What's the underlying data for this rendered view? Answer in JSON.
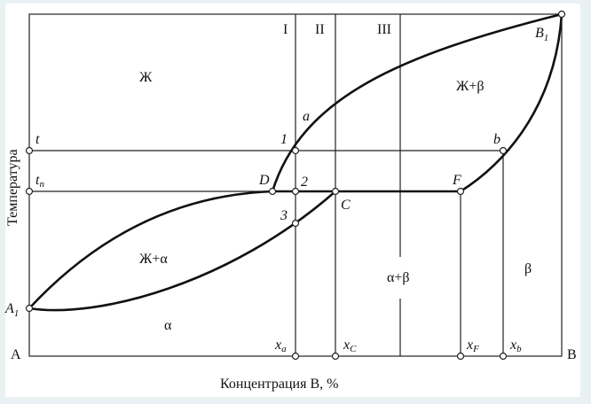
{
  "diagram": {
    "y_axis_label": "Температура",
    "x_axis_label": "Концентрация B, %",
    "corner_left": "A",
    "corner_right": "B",
    "verticals": [
      "I",
      "II",
      "III"
    ],
    "regions": {
      "liquid": "Ж",
      "liquid_beta": "Ж+β",
      "liquid_alpha": "Ж+α",
      "alpha_beta": "α+β",
      "alpha": "α",
      "beta": "β"
    },
    "points": {
      "A1": {
        "main": "A",
        "sub": "1"
      },
      "B1": {
        "main": "B",
        "sub": "1"
      },
      "t": "t",
      "tp": {
        "main": "t",
        "sub": "п"
      },
      "a": "a",
      "b": "b",
      "p1": "1",
      "p2": "2",
      "p3": "3",
      "D": "D",
      "C": "C",
      "F": "F"
    },
    "x_marks": [
      {
        "main": "x",
        "sub": "a"
      },
      {
        "main": "x",
        "sub": "C"
      },
      {
        "main": "x",
        "sub": "F"
      },
      {
        "main": "x",
        "sub": "b"
      }
    ]
  }
}
